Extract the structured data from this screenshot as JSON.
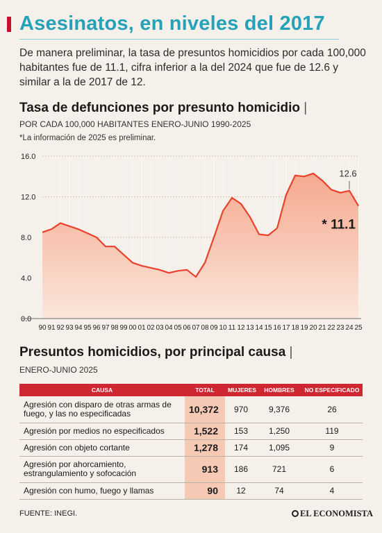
{
  "header": {
    "title": "Asesinatos, en niveles del 2017",
    "lead": "De manera preliminar, la tasa de presuntos homicidios por cada 100,000 habitantes fue de 11.1, cifra inferior a la del 2024 que fue de 12.6 y similar a la de 2017 de 12."
  },
  "chart_section": {
    "title": "Tasa de defunciones por presunto homicidio",
    "title_bar": "|",
    "subtitle": "POR CADA 100,000 HABITANTES ENERO-JUNIO 1990-2025",
    "note": "*La información de 2025 es preliminar."
  },
  "chart_data": {
    "type": "area",
    "x": [
      "90",
      "91",
      "92",
      "93",
      "94",
      "95",
      "96",
      "97",
      "98",
      "99",
      "00",
      "01",
      "02",
      "03",
      "04",
      "05",
      "06",
      "07",
      "08",
      "09",
      "10",
      "11",
      "12",
      "13",
      "14",
      "15",
      "16",
      "17",
      "18",
      "19",
      "20",
      "21",
      "22",
      "23",
      "24",
      "25"
    ],
    "values": [
      8.5,
      8.8,
      9.4,
      9.1,
      8.8,
      8.4,
      8.0,
      7.1,
      7.1,
      6.3,
      5.5,
      5.2,
      5.0,
      4.8,
      4.5,
      4.7,
      4.8,
      4.1,
      5.5,
      8.0,
      10.6,
      11.9,
      11.3,
      10.0,
      8.3,
      8.2,
      8.9,
      12.2,
      14.1,
      14.0,
      14.3,
      13.6,
      12.7,
      12.4,
      12.6,
      11.1
    ],
    "yticks": [
      "16.0",
      "12.0",
      "8.0",
      "4.0",
      "0.0"
    ],
    "ylim": [
      0,
      16
    ],
    "grid": "vertical",
    "annotations": [
      {
        "label": "12.6"
      },
      {
        "label": "* 11.1"
      }
    ],
    "colors": {
      "line": "#e8412c",
      "fill_top": "#f5a98e",
      "fill_bottom": "#fbe6dc"
    }
  },
  "table_section": {
    "title": "Presuntos homicidios, por principal causa",
    "title_bar": "|",
    "subtitle": "ENERO-JUNIO 2025",
    "headers": [
      "CAUSA",
      "TOTAL",
      "MUJERES",
      "HOMBRES",
      "NO ESPECIFICADO"
    ],
    "rows": [
      {
        "causa": "Agresión con disparo de otras armas de fuego, y las no especificadas",
        "total": "10,372",
        "mujeres": "970",
        "hombres": "9,376",
        "no_esp": "26"
      },
      {
        "causa": "Agresión por medios no especificados",
        "total": "1,522",
        "mujeres": "153",
        "hombres": "1,250",
        "no_esp": "119"
      },
      {
        "causa": "Agresión con objeto cortante",
        "total": "1,278",
        "mujeres": "174",
        "hombres": "1,095",
        "no_esp": "9"
      },
      {
        "causa": "Agresión por ahorcamiento, estrangulamiento y sofocación",
        "total": "913",
        "mujeres": "186",
        "hombres": "721",
        "no_esp": "6"
      },
      {
        "causa": "Agresión con humo, fuego y llamas",
        "total": "90",
        "mujeres": "12",
        "hombres": "74",
        "no_esp": "4"
      }
    ]
  },
  "footer": {
    "source": "FUENTE: INEGI.",
    "logo": "EL ECONOMISTA",
    "logo_icon": "globe-icon"
  }
}
